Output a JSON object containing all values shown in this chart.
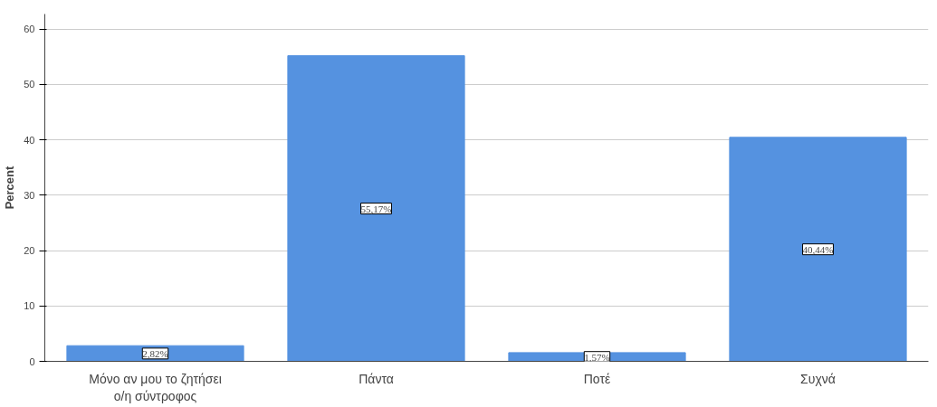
{
  "chart_data": {
    "type": "bar",
    "ylabel": "Percent",
    "categories": [
      "Μόνο αν μου το ζητήσει ο/η σύντροφος",
      "Πάντα",
      "Ποτέ",
      "Συχνά"
    ],
    "values": [
      2.82,
      55.17,
      1.57,
      40.44
    ],
    "value_labels": [
      "2,82%",
      "55,17%",
      "1,57%",
      "40,44%"
    ],
    "color": "#5592e0",
    "ylim": [
      0,
      62.7
    ],
    "yticks": [
      0,
      10,
      20,
      30,
      40,
      50,
      60
    ],
    "grid": "y"
  }
}
